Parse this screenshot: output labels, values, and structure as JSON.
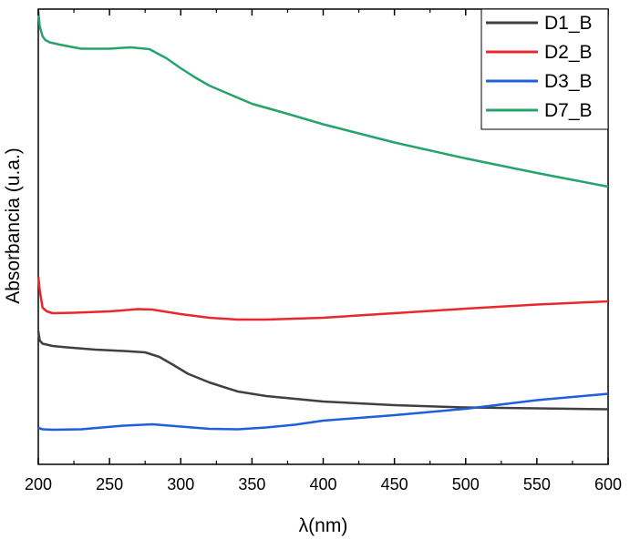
{
  "chart_data": {
    "type": "line",
    "title": "",
    "xlabel": "λ(nm)",
    "ylabel": "Absorbancia (u.a.)",
    "xlim": [
      200,
      600
    ],
    "ylim": [
      0,
      1
    ],
    "x_ticks": [
      200,
      250,
      300,
      350,
      400,
      450,
      500,
      550,
      600
    ],
    "y_tick_labels": false,
    "grid": false,
    "legend_position": "top-right",
    "series": [
      {
        "name": "D1_B",
        "color": "#404040",
        "x": [
          200,
          201,
          203,
          206,
          210,
          220,
          240,
          260,
          275,
          285,
          295,
          305,
          320,
          340,
          360,
          380,
          400,
          450,
          500,
          550,
          600
        ],
        "y": [
          0.293,
          0.272,
          0.265,
          0.263,
          0.26,
          0.257,
          0.252,
          0.249,
          0.246,
          0.236,
          0.218,
          0.199,
          0.18,
          0.16,
          0.15,
          0.144,
          0.138,
          0.13,
          0.125,
          0.123,
          0.121
        ]
      },
      {
        "name": "D2_B",
        "color": "#e8282d",
        "x": [
          200,
          201,
          203,
          206,
          210,
          225,
          250,
          270,
          280,
          300,
          320,
          340,
          360,
          380,
          400,
          450,
          500,
          550,
          600
        ],
        "y": [
          0.413,
          0.382,
          0.344,
          0.336,
          0.332,
          0.333,
          0.336,
          0.341,
          0.34,
          0.33,
          0.322,
          0.318,
          0.318,
          0.32,
          0.322,
          0.332,
          0.342,
          0.351,
          0.358
        ]
      },
      {
        "name": "D3_B",
        "color": "#1f5fd8",
        "x": [
          200,
          203,
          210,
          230,
          260,
          280,
          300,
          320,
          340,
          360,
          380,
          400,
          450,
          500,
          550,
          600
        ],
        "y": [
          0.08,
          0.077,
          0.076,
          0.077,
          0.085,
          0.088,
          0.083,
          0.078,
          0.077,
          0.081,
          0.087,
          0.096,
          0.108,
          0.122,
          0.141,
          0.155
        ]
      },
      {
        "name": "D7_B",
        "color": "#27a36a",
        "x": [
          200,
          201,
          203,
          205,
          208,
          215,
          230,
          250,
          265,
          278,
          290,
          300,
          310,
          320,
          335,
          350,
          375,
          400,
          450,
          500,
          550,
          600
        ],
        "y": [
          0.995,
          0.962,
          0.94,
          0.932,
          0.927,
          0.922,
          0.913,
          0.913,
          0.916,
          0.912,
          0.892,
          0.87,
          0.85,
          0.832,
          0.812,
          0.792,
          0.77,
          0.747,
          0.707,
          0.672,
          0.64,
          0.61
        ]
      }
    ]
  }
}
